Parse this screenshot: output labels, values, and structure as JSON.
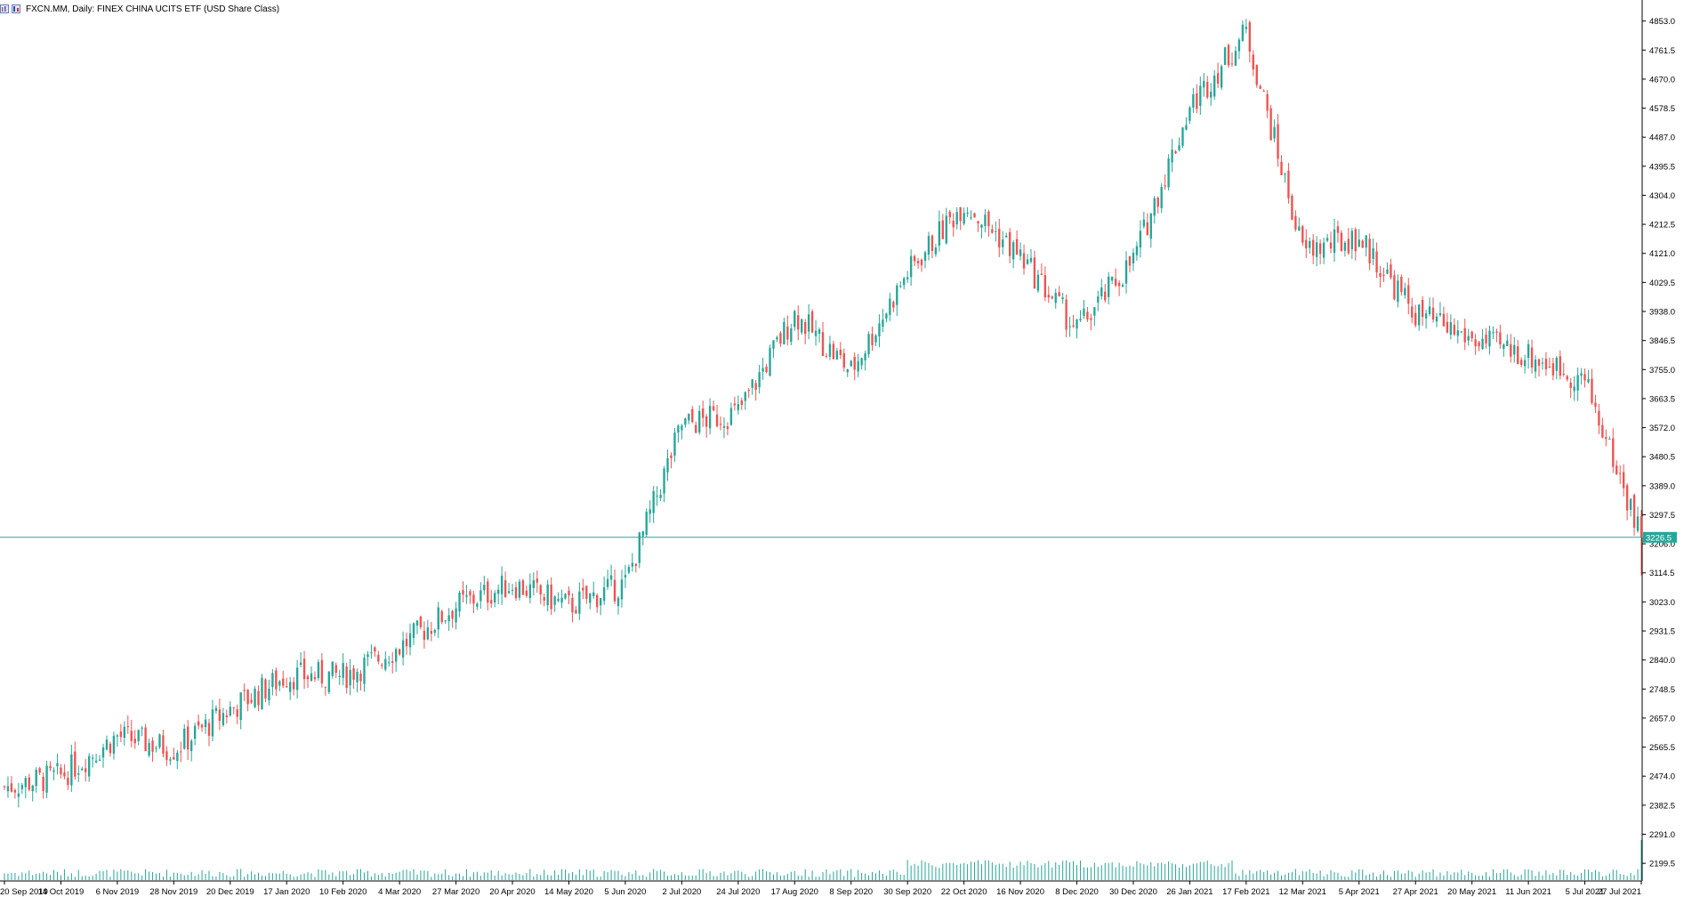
{
  "window": {
    "title": "FXCN.MM, Daily:  FINEX CHINA UCITS ETF (USD Share Class)",
    "icons": [
      "chart-window-icon",
      "chart-bars-icon"
    ]
  },
  "colors": {
    "bull": "#26a69a",
    "bear": "#ef5350",
    "grid_border": "#000000",
    "price_line": "#26a69a",
    "background": "#ffffff"
  },
  "chart_data": {
    "type": "candlestick",
    "symbol": "FXCN.MM",
    "timeframe": "Daily",
    "instrument": "FINEX CHINA UCITS ETF (USD Share Class)",
    "current_price": 3226.5,
    "current_price_label": "3226.5",
    "ylim": [
      2155,
      4880
    ],
    "y_ticks": [
      "4853.0",
      "4761.5",
      "4670.0",
      "4578.5",
      "4487.0",
      "4395.5",
      "4304.0",
      "4212.5",
      "4121.0",
      "4029.5",
      "3938.0",
      "3846.5",
      "3755.0",
      "3663.5",
      "3572.0",
      "3480.5",
      "3389.0",
      "3297.5",
      "3206.0",
      "3114.5",
      "3023.0",
      "2931.5",
      "2840.0",
      "2748.5",
      "2657.0",
      "2565.5",
      "2474.0",
      "2382.5",
      "2291.0",
      "2199.5"
    ],
    "x_ticks": [
      "20 Sep 2019",
      "14 Oct 2019",
      "6 Nov 2019",
      "28 Nov 2019",
      "20 Dec 2019",
      "17 Jan 2020",
      "10 Feb 2020",
      "4 Mar 2020",
      "27 Mar 2020",
      "20 Apr 2020",
      "14 May 2020",
      "5 Jun 2020",
      "2 Jul 2020",
      "24 Jul 2020",
      "17 Aug 2020",
      "8 Sep 2020",
      "30 Sep 2020",
      "22 Oct 2020",
      "16 Nov 2020",
      "8 Dec 2020",
      "30 Dec 2020",
      "26 Jan 2021",
      "17 Feb 2021",
      "12 Mar 2021",
      "5 Apr 2021",
      "27 Apr 2021",
      "20 May 2021",
      "11 Jun 2021",
      "5 Jul 2021",
      "27 Jul 2021"
    ],
    "series": [
      {
        "name": "close",
        "points": [
          [
            "20 Sep 2019",
            2440
          ],
          [
            "14 Oct 2019",
            2475
          ],
          [
            "6 Nov 2019",
            2600
          ],
          [
            "28 Nov 2019",
            2560
          ],
          [
            "20 Dec 2019",
            2685
          ],
          [
            "17 Jan 2020",
            2790
          ],
          [
            "10 Feb 2020",
            2790
          ],
          [
            "4 Mar 2020",
            2880
          ],
          [
            "27 Mar 2020",
            3010
          ],
          [
            "20 Apr 2020",
            3080
          ],
          [
            "14 May 2020",
            3010
          ],
          [
            "5 Jun 2020",
            3080
          ],
          [
            "2 Jul 2020",
            3580
          ],
          [
            "24 Jul 2020",
            3620
          ],
          [
            "17 Aug 2020",
            3930
          ],
          [
            "8 Sep 2020",
            3750
          ],
          [
            "30 Sep 2020",
            4060
          ],
          [
            "22 Oct 2020",
            4280
          ],
          [
            "16 Nov 2020",
            4110
          ],
          [
            "8 Dec 2020",
            3880
          ],
          [
            "30 Dec 2020",
            4100
          ],
          [
            "26 Jan 2021",
            4580
          ],
          [
            "17 Feb 2021",
            4820
          ],
          [
            "12 Mar 2021",
            4130
          ],
          [
            "5 Apr 2021",
            4170
          ],
          [
            "27 Apr 2021",
            3930
          ],
          [
            "20 May 2021",
            3850
          ],
          [
            "11 Jun 2021",
            3800
          ],
          [
            "5 Jul 2021",
            3720
          ],
          [
            "27 Jul 2021",
            3226.5
          ]
        ]
      }
    ],
    "volume_note": "volume histogram at bottom, peaks near 22 Oct 2020, 30 Dec 2020 and 27 Jul 2021"
  }
}
